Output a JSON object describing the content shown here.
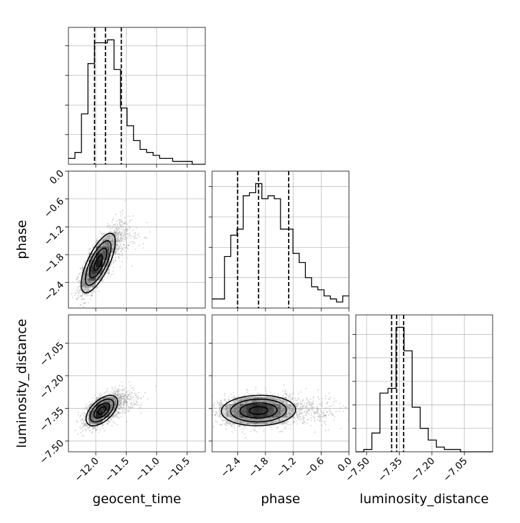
{
  "chart_data": {
    "type": "corner",
    "colors": {
      "ink": "#000000",
      "grid": "#b0b0b0",
      "scatter": "#9a9a9a",
      "density": "#000000"
    },
    "grid": true,
    "parameters": [
      "geocent_time",
      "phase",
      "luminosity_distance"
    ],
    "axis_labels": {
      "geocent_time": "geocent_time",
      "phase": "phase",
      "luminosity_distance": "luminosity_distance"
    },
    "ranges": {
      "geocent_time": [
        -12.45,
        -10.2
      ],
      "phase": [
        -2.95,
        0.0
      ],
      "luminosity_distance": [
        -7.55,
        -6.92
      ]
    },
    "ticks": {
      "geocent_time": {
        "values": [
          -12.0,
          -11.5,
          -11.0,
          -10.5
        ],
        "labels": [
          "−12.0",
          "−11.5",
          "−11.0",
          "−10.5"
        ]
      },
      "phase": {
        "values": [
          -2.4,
          -1.8,
          -1.2,
          -0.6,
          0.0
        ],
        "labels": [
          "−2.4",
          "−1.8",
          "−1.2",
          "−0.6",
          "0.0"
        ]
      },
      "luminosity_distance": {
        "values": [
          -7.5,
          -7.35,
          -7.2,
          -7.05
        ],
        "labels": [
          "−7.50",
          "−7.35",
          "−7.20",
          "−7.05"
        ]
      }
    },
    "quantiles": {
      "geocent_time": [
        -12.02,
        -11.84,
        -11.58
      ],
      "phase": [
        -2.4,
        -1.95,
        -1.3
      ],
      "luminosity_distance": [
        -7.385,
        -7.362,
        -7.33
      ]
    },
    "histograms": {
      "geocent_time": {
        "edges_range": [
          -12.45,
          -10.2
        ],
        "counts": [
          2,
          4,
          17,
          34,
          41,
          41,
          42,
          32,
          19,
          13,
          8,
          5,
          4,
          3,
          2,
          2,
          1,
          1,
          1,
          0,
          0
        ]
      },
      "phase": {
        "edges_range": [
          -2.95,
          0.0
        ],
        "counts": [
          3,
          3,
          17,
          24,
          26,
          37,
          38,
          41,
          36,
          37,
          36,
          26,
          26,
          18,
          15,
          10,
          7,
          6,
          4,
          3,
          2,
          4
        ]
      },
      "luminosity_distance": {
        "edges_range": [
          -7.55,
          -6.92
        ],
        "counts": [
          0,
          1,
          8,
          25,
          27,
          53,
          43,
          19,
          10,
          5,
          2,
          1,
          1,
          0,
          0,
          0,
          0
        ]
      }
    },
    "pairs": [
      {
        "x": "geocent_time",
        "y": "phase",
        "center": [
          -11.96,
          -1.98
        ],
        "spread": [
          0.14,
          0.32
        ],
        "corr": 0.72,
        "n": 1800
      },
      {
        "x": "geocent_time",
        "y": "luminosity_distance",
        "center": [
          -11.9,
          -7.36
        ],
        "spread": [
          0.13,
          0.035
        ],
        "corr": 0.55,
        "n": 1800
      },
      {
        "x": "phase",
        "y": "luminosity_distance",
        "center": [
          -1.95,
          -7.36
        ],
        "spread": [
          0.4,
          0.035
        ],
        "corr": 0.05,
        "n": 1800
      }
    ]
  }
}
